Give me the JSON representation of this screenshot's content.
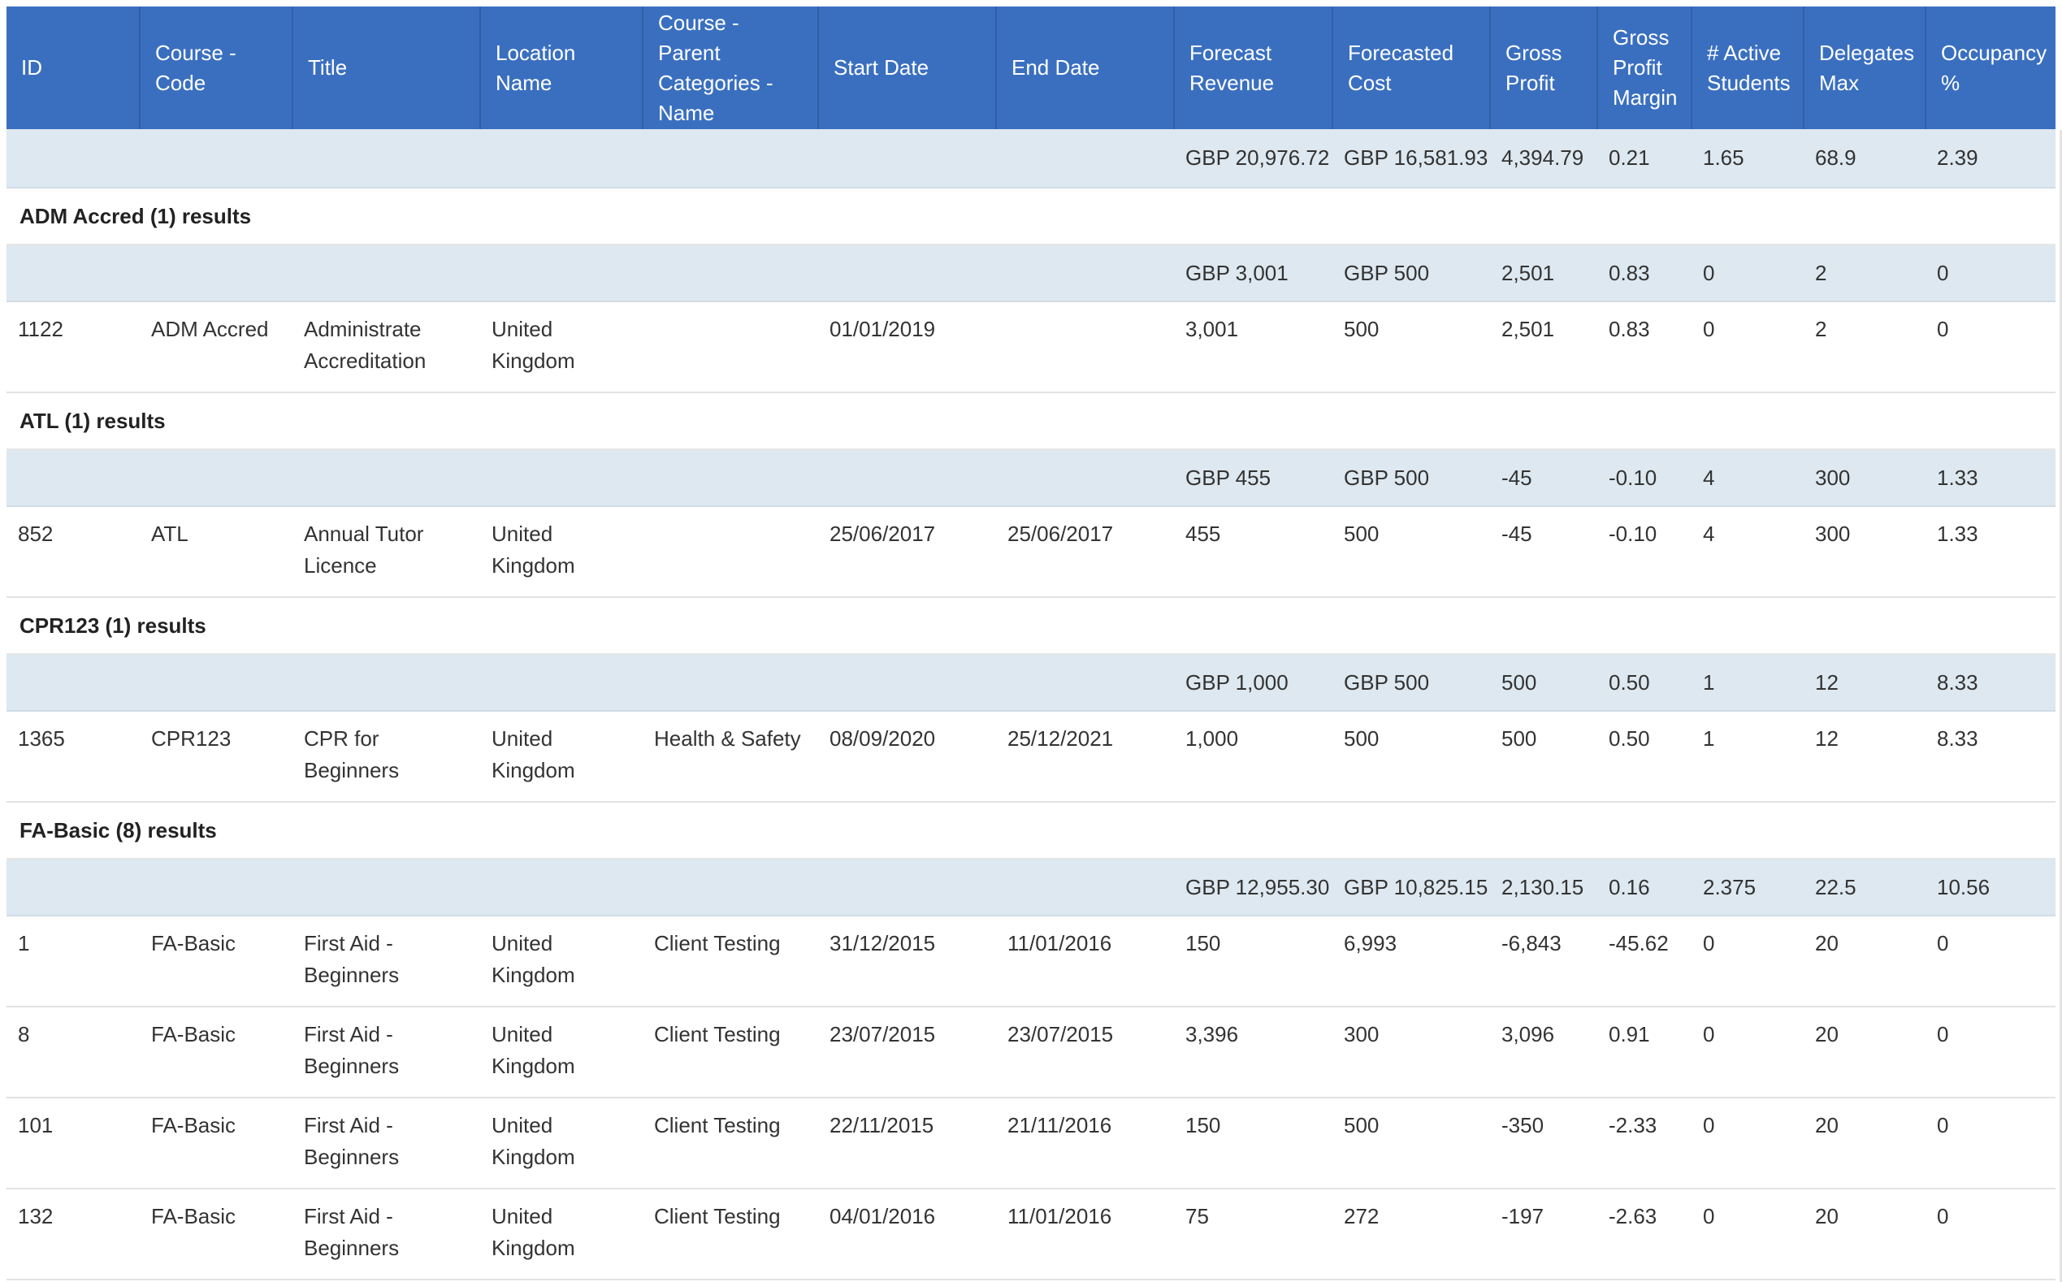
{
  "columns": [
    "ID",
    "Course - Code",
    "Title",
    "Location Name",
    "Course - Parent Categories - Name",
    "Start Date",
    "End Date",
    "Forecast Revenue",
    "Forecasted Cost",
    "Gross Profit",
    "Gross Profit Margin",
    "# Active Students",
    "Delegates Max",
    "Occupancy %"
  ],
  "overall": [
    "",
    "",
    "",
    "",
    "",
    "",
    "",
    "GBP 20,976.72",
    "GBP 16,581.93",
    "4,394.79",
    "0.21",
    "1.65",
    "68.9",
    "2.39"
  ],
  "groups": [
    {
      "label": "ADM Accred (1) results",
      "summary": [
        "",
        "",
        "",
        "",
        "",
        "",
        "",
        "GBP 3,001",
        "GBP 500",
        "2,501",
        "0.83",
        "0",
        "2",
        "0"
      ],
      "rows": [
        [
          "1122",
          "ADM Accred",
          "Administrate Accreditation",
          "United Kingdom",
          "",
          "01/01/2019",
          "",
          "3,001",
          "500",
          "2,501",
          "0.83",
          "0",
          "2",
          "0"
        ]
      ]
    },
    {
      "label": "ATL (1) results",
      "summary": [
        "",
        "",
        "",
        "",
        "",
        "",
        "",
        "GBP 455",
        "GBP 500",
        "-45",
        "-0.10",
        "4",
        "300",
        "1.33"
      ],
      "rows": [
        [
          "852",
          "ATL",
          "Annual Tutor Licence",
          "United Kingdom",
          "",
          "25/06/2017",
          "25/06/2017",
          "455",
          "500",
          "-45",
          "-0.10",
          "4",
          "300",
          "1.33"
        ]
      ]
    },
    {
      "label": "CPR123 (1) results",
      "summary": [
        "",
        "",
        "",
        "",
        "",
        "",
        "",
        "GBP 1,000",
        "GBP 500",
        "500",
        "0.50",
        "1",
        "12",
        "8.33"
      ],
      "rows": [
        [
          "1365",
          "CPR123",
          "CPR for Beginners",
          "United Kingdom",
          "Health & Safety",
          "08/09/2020",
          "25/12/2021",
          "1,000",
          "500",
          "500",
          "0.50",
          "1",
          "12",
          "8.33"
        ]
      ]
    },
    {
      "label": "FA-Basic (8) results",
      "summary": [
        "",
        "",
        "",
        "",
        "",
        "",
        "",
        "GBP 12,955.30",
        "GBP 10,825.15",
        "2,130.15",
        "0.16",
        "2.375",
        "22.5",
        "10.56"
      ],
      "rows": [
        [
          "1",
          "FA-Basic",
          "First Aid - Beginners",
          "United Kingdom",
          "Client Testing",
          "31/12/2015",
          "11/01/2016",
          "150",
          "6,993",
          "-6,843",
          "-45.62",
          "0",
          "20",
          "0"
        ],
        [
          "8",
          "FA-Basic",
          "First Aid - Beginners",
          "United Kingdom",
          "Client Testing",
          "23/07/2015",
          "23/07/2015",
          "3,396",
          "300",
          "3,096",
          "0.91",
          "0",
          "20",
          "0"
        ],
        [
          "101",
          "FA-Basic",
          "First Aid - Beginners",
          "United Kingdom",
          "Client Testing",
          "22/11/2015",
          "21/11/2016",
          "150",
          "500",
          "-350",
          "-2.33",
          "0",
          "20",
          "0"
        ],
        [
          "132",
          "FA-Basic",
          "First Aid - Beginners",
          "United Kingdom",
          "Client Testing",
          "04/01/2016",
          "11/01/2016",
          "75",
          "272",
          "-197",
          "-2.63",
          "0",
          "20",
          "0"
        ]
      ]
    }
  ]
}
